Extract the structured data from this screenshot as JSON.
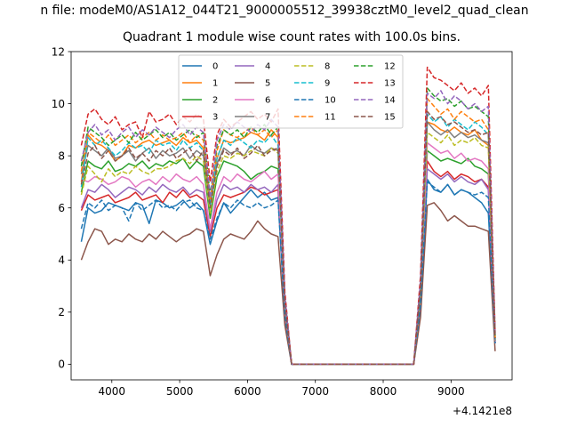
{
  "figure": {
    "suptitle": "n file: modeM0/AS1A12_044T21_9000005512_39938cztM0_level2_quad_clean"
  },
  "chart_data": {
    "type": "line",
    "title": "Quadrant 1 module wise count rates with 100.0s bins.",
    "xlabel": "",
    "ylabel": "",
    "x_offset_label": "+4.1421e8",
    "xlim": [
      3400,
      9900
    ],
    "ylim": [
      -0.6,
      12
    ],
    "xticks": [
      4000,
      5000,
      6000,
      7000,
      8000,
      9000
    ],
    "yticks": [
      0,
      2,
      4,
      6,
      8,
      10,
      12
    ],
    "grid": false,
    "legend": {
      "placement": "top-center",
      "columns": 4
    },
    "x": [
      3550,
      3650,
      3750,
      3850,
      3950,
      4050,
      4150,
      4250,
      4350,
      4450,
      4550,
      4650,
      4750,
      4850,
      4950,
      5050,
      5150,
      5250,
      5350,
      5450,
      5550,
      5650,
      5750,
      5850,
      5950,
      6050,
      6150,
      6250,
      6350,
      6450,
      6550,
      6650,
      6750,
      6850,
      6950,
      7050,
      7150,
      7250,
      7350,
      7450,
      7550,
      7650,
      7750,
      7850,
      7950,
      8050,
      8150,
      8250,
      8350,
      8450,
      8550,
      8650,
      8750,
      8850,
      8950,
      9050,
      9150,
      9250,
      9350,
      9450,
      9550,
      9650
    ],
    "series": [
      {
        "name": "0",
        "color": "#1f77b4",
        "dash": "solid",
        "values": [
          4.7,
          6.0,
          5.8,
          5.9,
          6.2,
          6.1,
          6.0,
          5.9,
          6.2,
          6.1,
          5.4,
          6.3,
          6.2,
          6.0,
          6.1,
          6.3,
          6.0,
          6.2,
          5.9,
          4.6,
          5.5,
          6.2,
          5.8,
          6.1,
          6.4,
          6.7,
          6.4,
          6.6,
          6.3,
          6.4,
          1.8,
          0,
          0,
          0,
          0,
          0,
          0,
          0,
          0,
          0,
          0,
          0,
          0,
          0,
          0,
          0,
          0,
          0,
          0,
          0,
          2.2,
          7.1,
          6.7,
          6.6,
          6.9,
          6.5,
          6.7,
          6.6,
          6.4,
          6.2,
          5.8,
          0.8
        ]
      },
      {
        "name": "1",
        "color": "#ff7f0e",
        "dash": "solid",
        "values": [
          7.0,
          8.8,
          8.5,
          8.4,
          8.2,
          7.8,
          8.0,
          8.4,
          8.3,
          8.5,
          8.6,
          8.4,
          8.5,
          8.6,
          8.4,
          8.7,
          8.5,
          8.6,
          8.3,
          6.2,
          7.9,
          8.6,
          8.5,
          8.6,
          8.7,
          8.9,
          8.8,
          8.6,
          9.0,
          8.7,
          2.4,
          0,
          0,
          0,
          0,
          0,
          0,
          0,
          0,
          0,
          0,
          0,
          0,
          0,
          0,
          0,
          0,
          0,
          0,
          0,
          2.8,
          9.3,
          9.2,
          9.0,
          8.9,
          9.1,
          8.9,
          8.8,
          9.0,
          8.6,
          8.4,
          1.0
        ]
      },
      {
        "name": "2",
        "color": "#2ca02c",
        "dash": "solid",
        "values": [
          6.6,
          7.8,
          7.6,
          7.5,
          7.8,
          7.4,
          7.5,
          7.7,
          7.6,
          7.8,
          7.5,
          7.7,
          7.6,
          7.8,
          7.7,
          7.9,
          7.5,
          7.8,
          7.6,
          5.6,
          7.2,
          7.8,
          7.7,
          7.6,
          7.4,
          7.1,
          7.3,
          7.4,
          7.6,
          7.5,
          2.1,
          0,
          0,
          0,
          0,
          0,
          0,
          0,
          0,
          0,
          0,
          0,
          0,
          0,
          0,
          0,
          0,
          0,
          0,
          0,
          2.6,
          8.2,
          8.0,
          7.8,
          7.9,
          7.8,
          7.7,
          7.9,
          7.6,
          7.5,
          7.3,
          0.9
        ]
      },
      {
        "name": "3",
        "color": "#d62728",
        "dash": "solid",
        "values": [
          5.9,
          6.5,
          6.3,
          6.4,
          6.5,
          6.2,
          6.3,
          6.4,
          6.6,
          6.3,
          6.4,
          6.5,
          6.2,
          6.6,
          6.4,
          6.7,
          6.4,
          6.5,
          6.3,
          4.9,
          6.0,
          6.5,
          6.4,
          6.5,
          6.6,
          6.8,
          6.7,
          6.5,
          6.6,
          6.7,
          1.9,
          0,
          0,
          0,
          0,
          0,
          0,
          0,
          0,
          0,
          0,
          0,
          0,
          0,
          0,
          0,
          0,
          0,
          0,
          0,
          2.4,
          7.8,
          7.4,
          7.2,
          7.4,
          7.1,
          7.3,
          7.2,
          7.0,
          7.1,
          6.8,
          0.8
        ]
      },
      {
        "name": "4",
        "color": "#9467bd",
        "dash": "solid",
        "values": [
          6.0,
          6.7,
          6.6,
          6.9,
          6.7,
          6.4,
          6.6,
          6.8,
          6.7,
          6.5,
          6.8,
          6.6,
          6.9,
          6.7,
          6.6,
          6.8,
          6.5,
          6.7,
          6.6,
          5.1,
          6.3,
          6.9,
          6.7,
          6.8,
          6.6,
          6.9,
          6.7,
          6.8,
          6.6,
          6.9,
          2.0,
          0,
          0,
          0,
          0,
          0,
          0,
          0,
          0,
          0,
          0,
          0,
          0,
          0,
          0,
          0,
          0,
          0,
          0,
          0,
          2.5,
          7.5,
          7.3,
          7.1,
          7.3,
          7.0,
          7.2,
          7.0,
          6.9,
          7.1,
          6.7,
          0.8
        ]
      },
      {
        "name": "5",
        "color": "#8c564b",
        "dash": "solid",
        "values": [
          4.0,
          4.7,
          5.2,
          5.1,
          4.6,
          4.8,
          4.7,
          5.0,
          4.8,
          4.7,
          5.0,
          4.8,
          5.1,
          4.9,
          4.7,
          4.9,
          5.0,
          5.2,
          5.1,
          3.4,
          4.2,
          4.8,
          5.0,
          4.9,
          4.8,
          5.1,
          5.5,
          5.2,
          5.0,
          4.9,
          1.5,
          0,
          0,
          0,
          0,
          0,
          0,
          0,
          0,
          0,
          0,
          0,
          0,
          0,
          0,
          0,
          0,
          0,
          0,
          0,
          1.8,
          6.1,
          6.2,
          5.9,
          5.5,
          5.7,
          5.5,
          5.3,
          5.3,
          5.2,
          5.1,
          0.5
        ]
      },
      {
        "name": "6",
        "color": "#e377c2",
        "dash": "solid",
        "values": [
          7.1,
          7.0,
          7.2,
          7.1,
          6.9,
          7.0,
          7.2,
          7.1,
          6.8,
          7.0,
          7.1,
          6.9,
          7.2,
          7.0,
          7.3,
          7.1,
          7.0,
          7.2,
          6.9,
          5.2,
          6.6,
          7.2,
          7.0,
          7.3,
          7.1,
          7.0,
          7.2,
          7.4,
          7.1,
          7.3,
          2.1,
          0,
          0,
          0,
          0,
          0,
          0,
          0,
          0,
          0,
          0,
          0,
          0,
          0,
          0,
          0,
          0,
          0,
          0,
          0,
          2.6,
          8.5,
          8.3,
          8.1,
          8.2,
          7.9,
          8.1,
          7.8,
          7.9,
          7.8,
          7.5,
          0.9
        ]
      },
      {
        "name": "7",
        "color": "#7f7f7f",
        "dash": "solid",
        "values": [
          7.3,
          8.4,
          8.2,
          8.0,
          8.3,
          7.9,
          8.0,
          8.2,
          7.8,
          8.1,
          8.3,
          7.9,
          8.2,
          8.0,
          8.1,
          8.3,
          7.9,
          8.2,
          8.0,
          6.0,
          7.7,
          8.3,
          8.1,
          8.2,
          8.0,
          8.4,
          8.2,
          8.1,
          8.3,
          8.2,
          2.3,
          0,
          0,
          0,
          0,
          0,
          0,
          0,
          0,
          0,
          0,
          0,
          0,
          0,
          0,
          0,
          0,
          0,
          0,
          0,
          2.8,
          9.3,
          9.0,
          8.8,
          9.0,
          8.7,
          8.9,
          8.7,
          8.8,
          8.6,
          8.5,
          0.9
        ]
      },
      {
        "name": "8",
        "color": "#bcbd22",
        "dash": "dashed",
        "values": [
          6.5,
          7.6,
          7.3,
          7.0,
          7.5,
          7.2,
          7.4,
          7.3,
          7.6,
          7.4,
          7.3,
          7.5,
          7.5,
          7.6,
          7.8,
          7.9,
          7.7,
          8.0,
          7.8,
          5.8,
          7.4,
          8.0,
          7.9,
          8.1,
          8.0,
          8.2,
          8.1,
          8.0,
          8.3,
          8.1,
          2.3,
          0,
          0,
          0,
          0,
          0,
          0,
          0,
          0,
          0,
          0,
          0,
          0,
          0,
          0,
          0,
          0,
          0,
          0,
          0,
          2.7,
          8.9,
          8.7,
          8.5,
          8.8,
          8.4,
          8.6,
          8.5,
          8.7,
          8.4,
          8.3,
          0.9
        ]
      },
      {
        "name": "9",
        "color": "#17becf",
        "dash": "dashed",
        "values": [
          6.8,
          8.7,
          8.4,
          8.6,
          8.3,
          8.0,
          8.2,
          8.5,
          8.3,
          8.4,
          8.1,
          8.6,
          8.4,
          8.5,
          8.2,
          8.6,
          8.3,
          8.5,
          8.2,
          6.1,
          7.9,
          8.6,
          8.4,
          8.7,
          8.5,
          8.3,
          8.6,
          8.5,
          8.8,
          8.4,
          2.4,
          0,
          0,
          0,
          0,
          0,
          0,
          0,
          0,
          0,
          0,
          0,
          0,
          0,
          0,
          0,
          0,
          0,
          0,
          0,
          2.9,
          9.6,
          9.3,
          9.5,
          9.1,
          9.4,
          9.2,
          9.0,
          9.3,
          9.1,
          8.8,
          1.0
        ]
      },
      {
        "name": "10",
        "color": "#1f77b4",
        "dash": "dashed",
        "values": [
          5.2,
          6.2,
          6.0,
          6.3,
          5.9,
          6.1,
          6.0,
          5.5,
          6.2,
          5.9,
          6.1,
          6.3,
          6.0,
          6.1,
          5.9,
          6.2,
          6.3,
          6.0,
          5.9,
          4.8,
          5.6,
          6.2,
          6.0,
          6.3,
          6.1,
          6.0,
          6.2,
          6.0,
          6.1,
          6.3,
          1.9,
          0,
          0,
          0,
          0,
          0,
          0,
          0,
          0,
          0,
          0,
          0,
          0,
          0,
          0,
          0,
          0,
          0,
          0,
          0,
          2.3,
          7.0,
          6.8,
          6.6,
          6.9,
          6.5,
          6.7,
          6.6,
          6.5,
          6.6,
          6.4,
          0.8
        ]
      },
      {
        "name": "11",
        "color": "#ff7f0e",
        "dash": "dashed",
        "values": [
          7.4,
          8.9,
          8.7,
          8.5,
          8.8,
          8.4,
          8.6,
          8.8,
          8.5,
          8.7,
          8.9,
          8.6,
          8.8,
          8.6,
          8.7,
          8.9,
          8.5,
          8.8,
          8.6,
          6.3,
          8.2,
          9.0,
          8.8,
          8.7,
          8.9,
          9.1,
          8.8,
          9.0,
          8.7,
          9.0,
          2.5,
          0,
          0,
          0,
          0,
          0,
          0,
          0,
          0,
          0,
          0,
          0,
          0,
          0,
          0,
          0,
          0,
          0,
          0,
          0,
          3.0,
          10.2,
          9.9,
          9.6,
          9.8,
          9.4,
          9.7,
          9.5,
          9.3,
          9.4,
          9.0,
          1.0
        ]
      },
      {
        "name": "12",
        "color": "#2ca02c",
        "dash": "dashed",
        "values": [
          7.6,
          9.1,
          8.9,
          8.7,
          8.4,
          8.6,
          8.8,
          8.5,
          8.9,
          8.6,
          8.8,
          9.0,
          8.7,
          8.9,
          8.6,
          8.8,
          9.0,
          8.7,
          8.9,
          6.5,
          8.4,
          9.0,
          8.8,
          9.0,
          8.7,
          9.1,
          8.9,
          9.2,
          8.8,
          9.1,
          2.6,
          0,
          0,
          0,
          0,
          0,
          0,
          0,
          0,
          0,
          0,
          0,
          0,
          0,
          0,
          0,
          0,
          0,
          0,
          0,
          3.1,
          10.6,
          10.3,
          10.1,
          10.2,
          9.9,
          10.1,
          9.8,
          9.9,
          9.7,
          9.5,
          1.1
        ]
      },
      {
        "name": "13",
        "color": "#d62728",
        "dash": "dashed",
        "values": [
          8.4,
          9.6,
          9.8,
          9.4,
          9.2,
          9.5,
          9.0,
          9.2,
          9.3,
          8.7,
          9.7,
          9.3,
          9.4,
          9.6,
          9.2,
          9.5,
          9.3,
          9.6,
          9.4,
          7.0,
          8.8,
          9.4,
          9.1,
          9.3,
          9.5,
          9.7,
          9.4,
          9.6,
          9.3,
          9.8,
          2.8,
          0,
          0,
          0,
          0,
          0,
          0,
          0,
          0,
          0,
          0,
          0,
          0,
          0,
          0,
          0,
          0,
          0,
          0,
          0,
          3.4,
          11.4,
          11.0,
          10.9,
          10.7,
          10.5,
          10.8,
          10.4,
          10.6,
          10.3,
          10.7,
          1.2
        ]
      },
      {
        "name": "14",
        "color": "#9467bd",
        "dash": "dashed",
        "values": [
          7.8,
          8.9,
          9.2,
          8.8,
          9.0,
          8.6,
          8.9,
          9.1,
          8.7,
          9.0,
          8.8,
          9.1,
          8.9,
          8.7,
          9.0,
          9.2,
          8.8,
          9.1,
          8.9,
          6.4,
          8.6,
          9.2,
          9.0,
          9.3,
          9.1,
          8.9,
          9.2,
          9.0,
          9.4,
          9.1,
          2.6,
          0,
          0,
          0,
          0,
          0,
          0,
          0,
          0,
          0,
          0,
          0,
          0,
          0,
          0,
          0,
          0,
          0,
          0,
          0,
          3.2,
          10.4,
          10.2,
          10.5,
          10.0,
          10.3,
          10.1,
          9.8,
          10.0,
          9.7,
          9.9,
          1.1
        ]
      },
      {
        "name": "15",
        "color": "#8c564b",
        "dash": "dashed",
        "values": [
          6.9,
          8.1,
          8.4,
          7.9,
          8.2,
          7.8,
          8.0,
          8.3,
          7.9,
          8.1,
          7.8,
          8.2,
          8.0,
          8.3,
          7.9,
          8.1,
          8.3,
          7.8,
          8.2,
          6.0,
          7.6,
          8.2,
          8.0,
          8.3,
          7.9,
          8.1,
          8.4,
          8.0,
          8.2,
          8.3,
          2.3,
          0,
          0,
          0,
          0,
          0,
          0,
          0,
          0,
          0,
          0,
          0,
          0,
          0,
          0,
          0,
          0,
          0,
          0,
          0,
          2.9,
          9.7,
          9.4,
          9.5,
          9.2,
          9.3,
          9.1,
          8.9,
          9.0,
          8.8,
          8.9,
          1.0
        ]
      }
    ]
  }
}
